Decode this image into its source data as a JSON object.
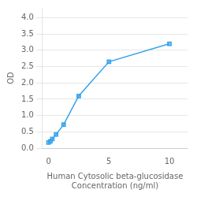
{
  "chart_data": {
    "type": "line",
    "x": [
      0,
      0.156,
      0.313,
      0.625,
      1.25,
      2.5,
      5,
      10
    ],
    "values": [
      0.175,
      0.21,
      0.28,
      0.42,
      0.72,
      1.6,
      2.65,
      3.2
    ],
    "marker": "square",
    "xlabel": [
      "Human Cytosolic beta-glucosidase",
      "Concentration (ng/ml)"
    ],
    "ylabel": "OD",
    "xlim": [
      -0.5,
      11.5
    ],
    "xticks": [
      0,
      5,
      10
    ],
    "ylim": [
      0,
      4.3
    ],
    "yticks": [
      {
        "value": 0,
        "label": "0.0"
      },
      0.5,
      {
        "value": 1.0,
        "label": "1.0"
      },
      1.5,
      {
        "value": 2.0,
        "label": "2.0"
      },
      2.5,
      {
        "value": 3.0,
        "label": "3.0"
      },
      3.5,
      {
        "value": 4.0,
        "label": "4.0"
      }
    ],
    "grid": "y"
  }
}
